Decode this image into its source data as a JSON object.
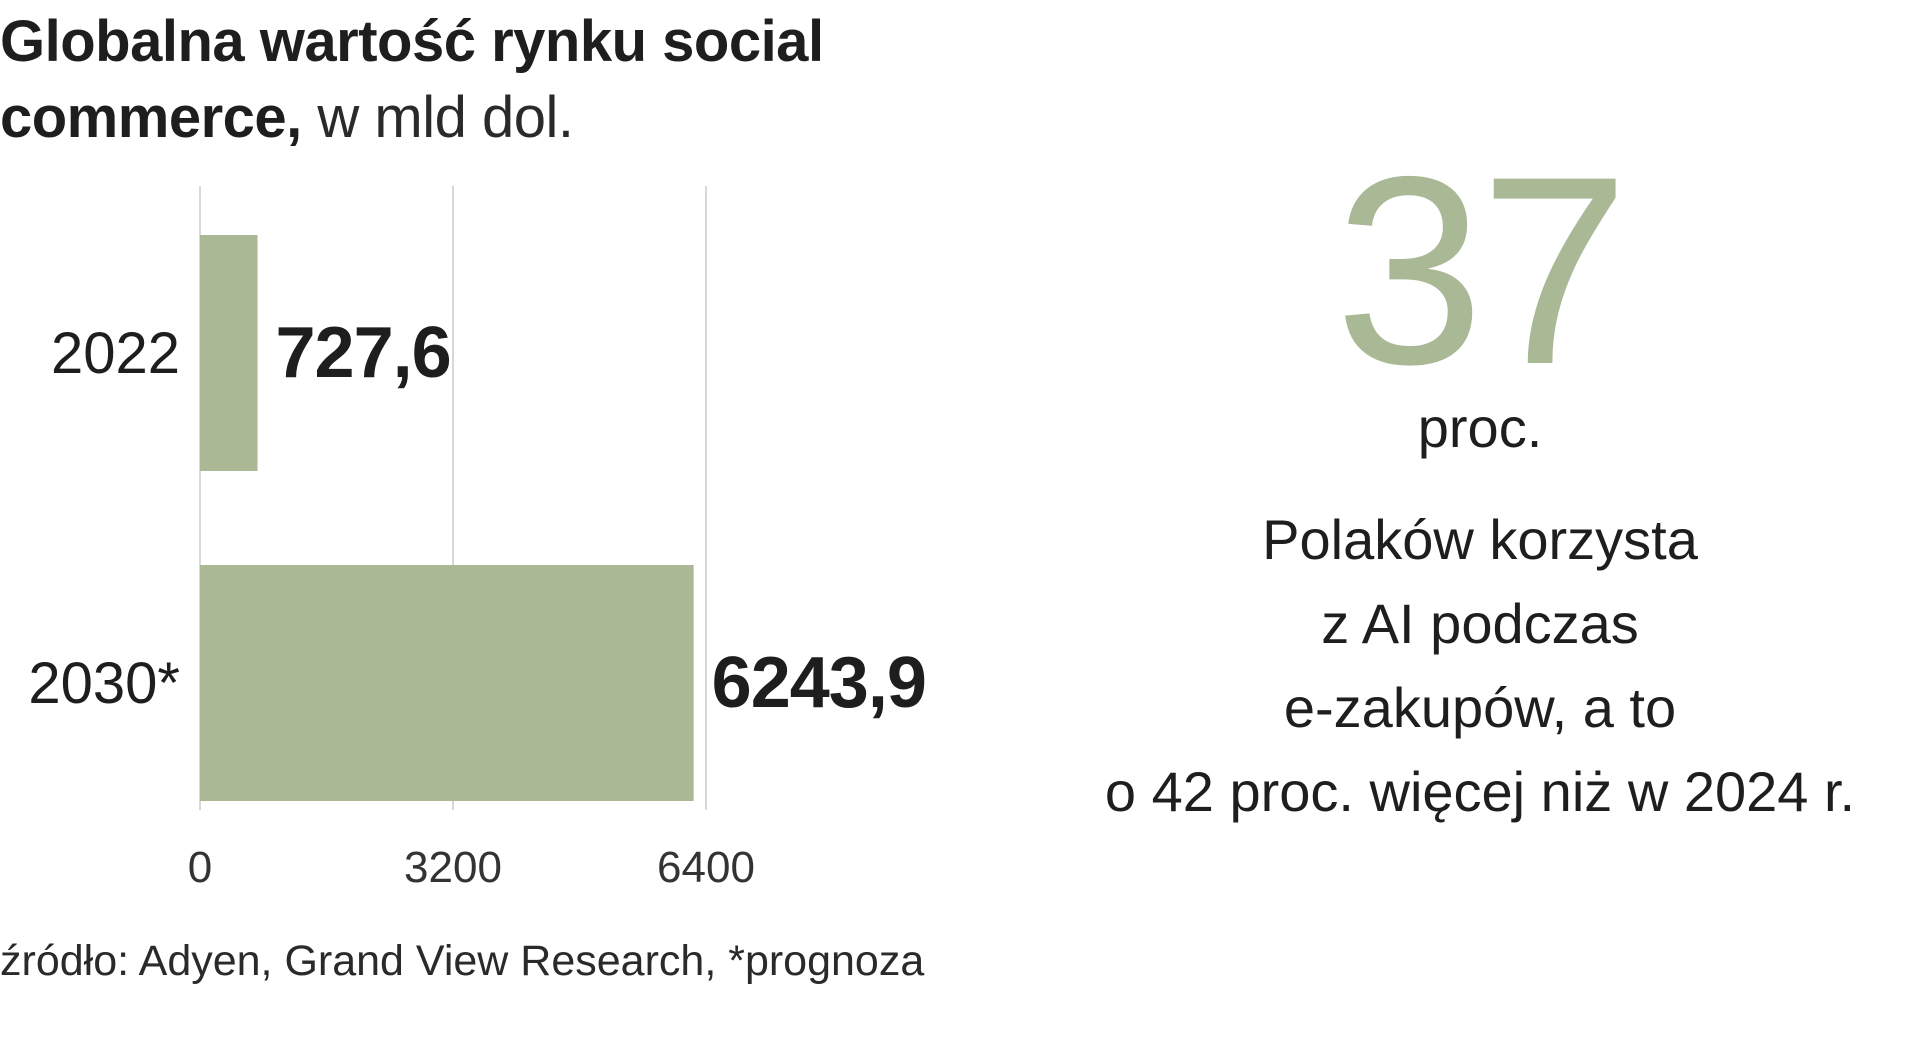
{
  "title": {
    "line1": "Globalna wartość rynku social",
    "line2_bold": "commerce,",
    "line2_unit": " w mld dol."
  },
  "source": "źródło: Adyen, Grand View Research, *prognoza",
  "stat": {
    "number": "37",
    "unit": "proc.",
    "description": [
      "Polaków korzysta",
      "z AI podczas",
      "e-zakupów, a to",
      "o 42 proc. więcej niż w 2024 r."
    ]
  },
  "colors": {
    "bar": "#abb896",
    "gridline": "#d8d8d8",
    "text": "#1e1e1e",
    "accent_number": "#a9b895"
  },
  "chart_data": {
    "type": "bar",
    "orientation": "horizontal",
    "categories": [
      "2022",
      "2030*"
    ],
    "values": [
      727.6,
      6243.9
    ],
    "value_labels": [
      "727,6",
      "6243,9"
    ],
    "xlim": [
      0,
      6400
    ],
    "xticks": [
      0,
      3200,
      6400
    ],
    "xtick_labels": [
      "0",
      "3200",
      "6400"
    ],
    "grid": true
  }
}
